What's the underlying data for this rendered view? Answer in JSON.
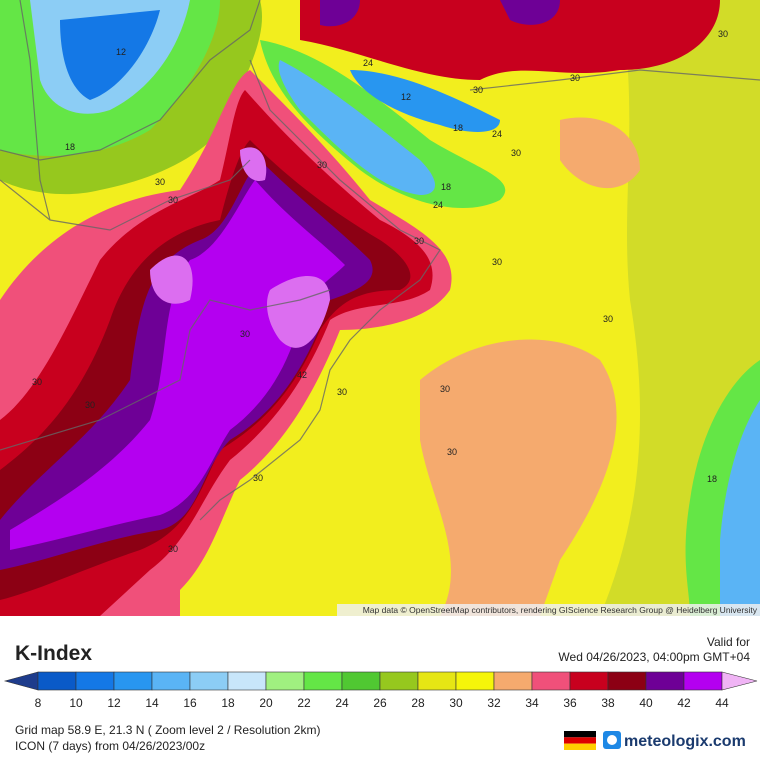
{
  "map": {
    "contour_labels": [
      "12",
      "18",
      "30",
      "24",
      "12",
      "30",
      "18",
      "24",
      "30",
      "30",
      "30",
      "30",
      "18",
      "24",
      "30",
      "30",
      "30",
      "30",
      "30",
      "42",
      "30",
      "30",
      "30",
      "30",
      "30",
      "30",
      "18",
      "30"
    ],
    "attribution": "Map data © OpenStreetMap contributors, rendering GIScience Research Group @ Heidelberg University"
  },
  "legend": {
    "title": "K-Index",
    "valid_label": "Valid for",
    "valid_time": "Wed 04/26/2023, 04:00pm GMT+04",
    "ticks": [
      8,
      10,
      12,
      14,
      16,
      18,
      20,
      22,
      24,
      26,
      28,
      30,
      32,
      34,
      36,
      38,
      40,
      42,
      44
    ],
    "colors": [
      "#1e3c8c",
      "#0a5ac8",
      "#1478e6",
      "#2896f0",
      "#5ab4f5",
      "#8ccdf5",
      "#c8e6fa",
      "#a0f080",
      "#64e646",
      "#50c832",
      "#96c81e",
      "#e6e614",
      "#f5f50a",
      "#f5aa6e",
      "#f0507a",
      "#c8001e",
      "#8c0014",
      "#6e0096",
      "#b400f0",
      "#dc6ef0",
      "#f0b4f5"
    ]
  },
  "footer": {
    "grid_line": "Grid map 58.9 E, 21.3 N ( Zoom level 2 / Resolution 2km)",
    "model_line": "ICON (7 days)  from  04/26/2023/00z",
    "brand": "meteologix.com"
  }
}
